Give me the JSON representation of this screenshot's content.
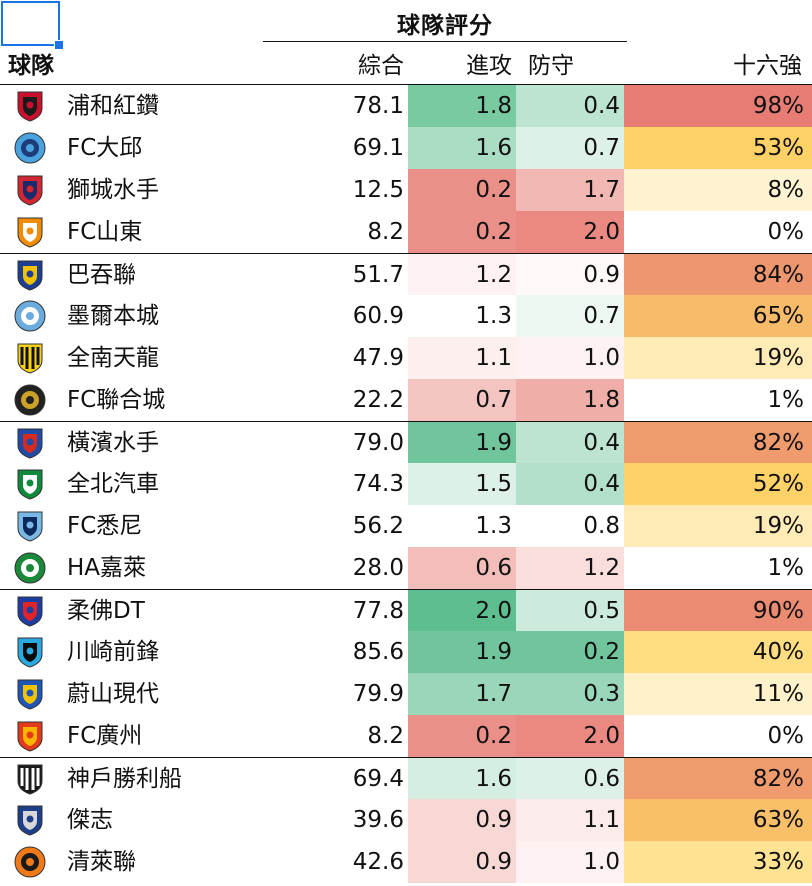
{
  "header": {
    "group_title": "球隊評分",
    "team": "球隊",
    "overall": "綜合",
    "attack": "進攻",
    "defense": "防守",
    "round16": "十六強"
  },
  "colors": {
    "selection": "#1a73e8",
    "green_strong": "#57bb8a",
    "white": "#ffffff",
    "red_strong": "#e67c73",
    "orange": "#f6b26b",
    "yellow": "#ffd666"
  },
  "groups": [
    {
      "teams": [
        {
          "name": "浦和紅鑽",
          "logo": "urawa-red-diamonds-crest-icon",
          "overall": "78.1",
          "attack": "1.8",
          "defense": "0.4",
          "r16": "98%",
          "attack_level": 0.8,
          "defense_level": -0.4,
          "r16_level": 0.98
        },
        {
          "name": "FC大邱",
          "logo": "daegu-fc-crest-icon",
          "overall": "69.1",
          "attack": "1.6",
          "defense": "0.7",
          "r16": "53%",
          "attack_level": 0.5,
          "defense_level": -0.2,
          "r16_level": 0.53
        },
        {
          "name": "獅城水手",
          "logo": "lion-city-sailors-crest-icon",
          "overall": "12.5",
          "attack": "0.2",
          "defense": "1.7",
          "r16": "8%",
          "attack_level": -0.85,
          "defense_level": 0.55,
          "r16_level": 0.08
        },
        {
          "name": "FC山東",
          "logo": "shandong-fc-crest-icon",
          "overall": "8.2",
          "attack": "0.2",
          "defense": "2.0",
          "r16": "0%",
          "attack_level": -0.85,
          "defense_level": 0.9,
          "r16_level": 0.0
        }
      ]
    },
    {
      "teams": [
        {
          "name": "巴吞聯",
          "logo": "bg-pathum-united-crest-icon",
          "overall": "51.7",
          "attack": "1.2",
          "defense": "0.9",
          "r16": "84%",
          "attack_level": -0.1,
          "defense_level": 0.05,
          "r16_level": 0.84
        },
        {
          "name": "墨爾本城",
          "logo": "melbourne-city-crest-icon",
          "overall": "60.9",
          "attack": "1.3",
          "defense": "0.7",
          "r16": "65%",
          "attack_level": 0.0,
          "defense_level": -0.1,
          "r16_level": 0.65
        },
        {
          "name": "全南天龍",
          "logo": "jeonnam-dragons-crest-icon",
          "overall": "47.9",
          "attack": "1.1",
          "defense": "1.0",
          "r16": "19%",
          "attack_level": -0.12,
          "defense_level": 0.1,
          "r16_level": 0.19
        },
        {
          "name": "FC聯合城",
          "logo": "united-city-fc-crest-icon",
          "overall": "22.2",
          "attack": "0.7",
          "defense": "1.8",
          "r16": "1%",
          "attack_level": -0.45,
          "defense_level": 0.62,
          "r16_level": 0.01
        }
      ]
    },
    {
      "teams": [
        {
          "name": "橫濱水手",
          "logo": "yokohama-f-marinos-crest-icon",
          "overall": "79.0",
          "attack": "1.9",
          "defense": "0.4",
          "r16": "82%",
          "attack_level": 0.85,
          "defense_level": -0.4,
          "r16_level": 0.82
        },
        {
          "name": "全北汽車",
          "logo": "jeonbuk-motors-crest-icon",
          "overall": "74.3",
          "attack": "1.5",
          "defense": "0.4",
          "r16": "52%",
          "attack_level": 0.2,
          "defense_level": -0.45,
          "r16_level": 0.52
        },
        {
          "name": "FC悉尼",
          "logo": "sydney-fc-crest-icon",
          "overall": "56.2",
          "attack": "1.3",
          "defense": "0.8",
          "r16": "19%",
          "attack_level": 0.0,
          "defense_level": 0.0,
          "r16_level": 0.19
        },
        {
          "name": "HA嘉萊",
          "logo": "hagl-crest-icon",
          "overall": "28.0",
          "attack": "0.6",
          "defense": "1.2",
          "r16": "1%",
          "attack_level": -0.5,
          "defense_level": 0.25,
          "r16_level": 0.01
        }
      ]
    },
    {
      "teams": [
        {
          "name": "柔佛DT",
          "logo": "johor-darul-tazim-crest-icon",
          "overall": "77.8",
          "attack": "2.0",
          "defense": "0.5",
          "r16": "90%",
          "attack_level": 0.95,
          "defense_level": -0.3,
          "r16_level": 0.9
        },
        {
          "name": "川崎前鋒",
          "logo": "kawasaki-frontale-crest-icon",
          "overall": "85.6",
          "attack": "1.9",
          "defense": "0.2",
          "r16": "40%",
          "attack_level": 0.85,
          "defense_level": -0.85,
          "r16_level": 0.4
        },
        {
          "name": "蔚山現代",
          "logo": "ulsan-hyundai-crest-icon",
          "overall": "79.9",
          "attack": "1.7",
          "defense": "0.3",
          "r16": "11%",
          "attack_level": 0.6,
          "defense_level": -0.6,
          "r16_level": 0.11
        },
        {
          "name": "FC廣州",
          "logo": "guangzhou-fc-crest-icon",
          "overall": "8.2",
          "attack": "0.2",
          "defense": "2.0",
          "r16": "0%",
          "attack_level": -0.85,
          "defense_level": 0.9,
          "r16_level": 0.0
        }
      ]
    },
    {
      "teams": [
        {
          "name": "神戶勝利船",
          "logo": "vissel-kobe-crest-icon",
          "overall": "69.4",
          "attack": "1.6",
          "defense": "0.6",
          "r16": "82%",
          "attack_level": 0.25,
          "defense_level": -0.2,
          "r16_level": 0.82
        },
        {
          "name": "傑志",
          "logo": "kitchee-crest-icon",
          "overall": "39.6",
          "attack": "0.9",
          "defense": "1.1",
          "r16": "63%",
          "attack_level": -0.3,
          "defense_level": 0.15,
          "r16_level": 0.63
        },
        {
          "name": "清萊聯",
          "logo": "chiangrai-united-crest-icon",
          "overall": "42.6",
          "attack": "0.9",
          "defense": "1.0",
          "r16": "33%",
          "attack_level": -0.3,
          "defense_level": 0.1,
          "r16_level": 0.33
        }
      ]
    }
  ]
}
